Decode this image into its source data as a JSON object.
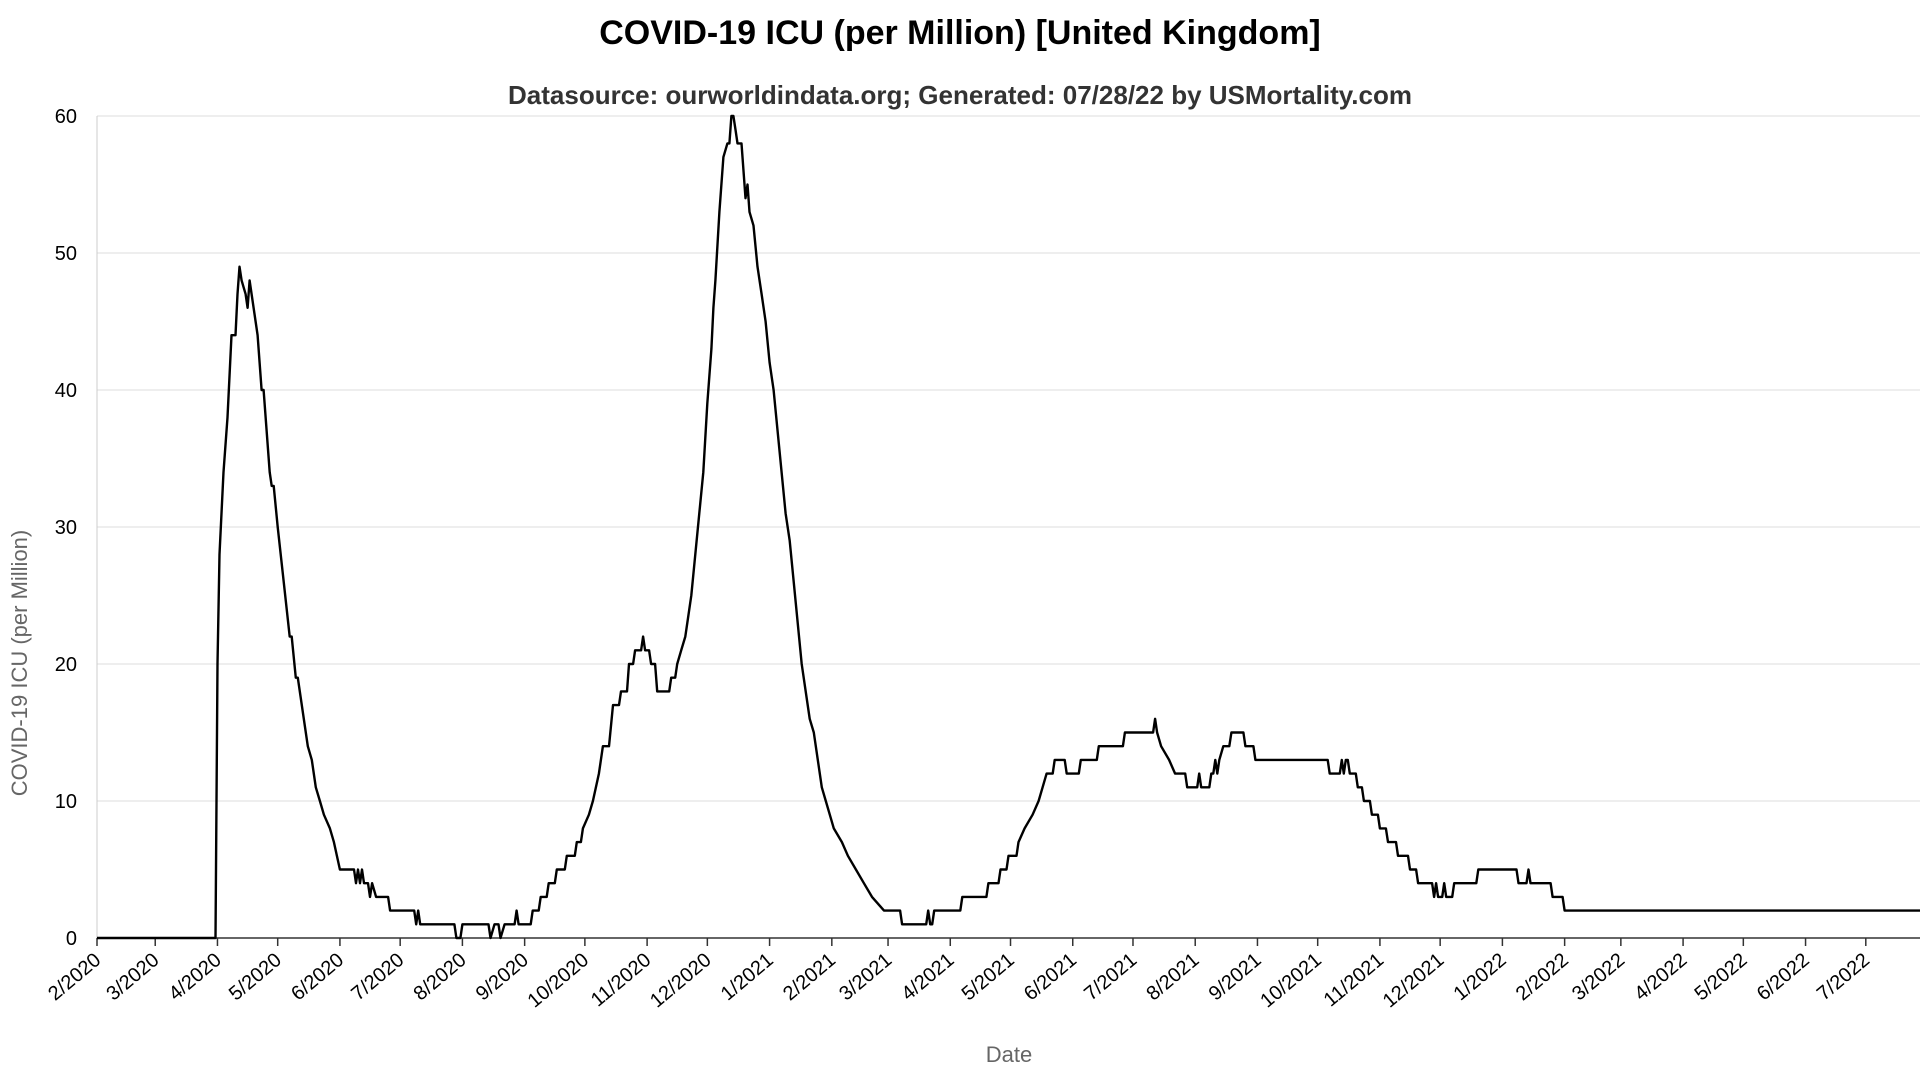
{
  "chart_data": {
    "type": "line",
    "title": "COVID-19 ICU (per Million) [United Kingdom]",
    "subtitle": "Datasource: ourworldindata.org; Generated: 07/28/22 by USMortality.com",
    "xlabel": "Date",
    "ylabel": "COVID-19 ICU (per Million)",
    "ylim": [
      0,
      60
    ],
    "yticks": [
      0,
      10,
      20,
      30,
      40,
      50,
      60
    ],
    "xlim": [
      "2020-02-01",
      "2022-07-28"
    ],
    "xticks": [
      {
        "date": "2020-02-01",
        "label": "2/2020"
      },
      {
        "date": "2020-03-01",
        "label": "3/2020"
      },
      {
        "date": "2020-04-01",
        "label": "4/2020"
      },
      {
        "date": "2020-05-01",
        "label": "5/2020"
      },
      {
        "date": "2020-06-01",
        "label": "6/2020"
      },
      {
        "date": "2020-07-01",
        "label": "7/2020"
      },
      {
        "date": "2020-08-01",
        "label": "8/2020"
      },
      {
        "date": "2020-09-01",
        "label": "9/2020"
      },
      {
        "date": "2020-10-01",
        "label": "10/2020"
      },
      {
        "date": "2020-11-01",
        "label": "11/2020"
      },
      {
        "date": "2020-12-01",
        "label": "12/2020"
      },
      {
        "date": "2021-01-01",
        "label": "1/2021"
      },
      {
        "date": "2021-02-01",
        "label": "2/2021"
      },
      {
        "date": "2021-03-01",
        "label": "3/2021"
      },
      {
        "date": "2021-04-01",
        "label": "4/2021"
      },
      {
        "date": "2021-05-01",
        "label": "5/2021"
      },
      {
        "date": "2021-06-01",
        "label": "6/2021"
      },
      {
        "date": "2021-07-01",
        "label": "7/2021"
      },
      {
        "date": "2021-08-01",
        "label": "8/2021"
      },
      {
        "date": "2021-09-01",
        "label": "9/2021"
      },
      {
        "date": "2021-10-01",
        "label": "10/2021"
      },
      {
        "date": "2021-11-01",
        "label": "11/2021"
      },
      {
        "date": "2021-12-01",
        "label": "12/2021"
      },
      {
        "date": "2022-01-01",
        "label": "1/2022"
      },
      {
        "date": "2022-02-01",
        "label": "2/2022"
      },
      {
        "date": "2022-03-01",
        "label": "3/2022"
      },
      {
        "date": "2022-04-01",
        "label": "4/2022"
      },
      {
        "date": "2022-05-01",
        "label": "5/2022"
      },
      {
        "date": "2022-06-01",
        "label": "6/2022"
      },
      {
        "date": "2022-07-01",
        "label": "7/2022"
      }
    ],
    "grid": true,
    "line_color": "#000000",
    "series": [
      {
        "points": [
          [
            "2020-02-01",
            0
          ],
          [
            "2020-03-31",
            0
          ],
          [
            "2020-04-01",
            20
          ],
          [
            "2020-04-02",
            28
          ],
          [
            "2020-04-04",
            34
          ],
          [
            "2020-04-06",
            38
          ],
          [
            "2020-04-08",
            44
          ],
          [
            "2020-04-10",
            44
          ],
          [
            "2020-04-11",
            47
          ],
          [
            "2020-04-12",
            49
          ],
          [
            "2020-04-13",
            48
          ],
          [
            "2020-04-15",
            47
          ],
          [
            "2020-04-16",
            46
          ],
          [
            "2020-04-17",
            48
          ],
          [
            "2020-04-19",
            46
          ],
          [
            "2020-04-21",
            44
          ],
          [
            "2020-04-23",
            40
          ],
          [
            "2020-04-24",
            40
          ],
          [
            "2020-04-27",
            34
          ],
          [
            "2020-04-28",
            33
          ],
          [
            "2020-04-29",
            33
          ],
          [
            "2020-05-01",
            30
          ],
          [
            "2020-05-04",
            26
          ],
          [
            "2020-05-07",
            22
          ],
          [
            "2020-05-08",
            22
          ],
          [
            "2020-05-10",
            19
          ],
          [
            "2020-05-11",
            19
          ],
          [
            "2020-05-14",
            16
          ],
          [
            "2020-05-16",
            14
          ],
          [
            "2020-05-18",
            13
          ],
          [
            "2020-05-20",
            11
          ],
          [
            "2020-05-22",
            10
          ],
          [
            "2020-05-24",
            9
          ],
          [
            "2020-05-27",
            8
          ],
          [
            "2020-05-29",
            7
          ],
          [
            "2020-06-01",
            5
          ],
          [
            "2020-06-08",
            5
          ],
          [
            "2020-06-09",
            4
          ],
          [
            "2020-06-10",
            5
          ],
          [
            "2020-06-11",
            4
          ],
          [
            "2020-06-12",
            5
          ],
          [
            "2020-06-13",
            4
          ],
          [
            "2020-06-15",
            4
          ],
          [
            "2020-06-16",
            3
          ],
          [
            "2020-06-17",
            4
          ],
          [
            "2020-06-19",
            3
          ],
          [
            "2020-06-25",
            3
          ],
          [
            "2020-06-26",
            2
          ],
          [
            "2020-07-08",
            2
          ],
          [
            "2020-07-09",
            1
          ],
          [
            "2020-07-10",
            2
          ],
          [
            "2020-07-11",
            1
          ],
          [
            "2020-07-28",
            1
          ],
          [
            "2020-07-29",
            0
          ],
          [
            "2020-07-31",
            0
          ],
          [
            "2020-08-01",
            1
          ],
          [
            "2020-08-14",
            1
          ],
          [
            "2020-08-15",
            0
          ],
          [
            "2020-08-17",
            1
          ],
          [
            "2020-08-19",
            1
          ],
          [
            "2020-08-20",
            0
          ],
          [
            "2020-08-22",
            1
          ],
          [
            "2020-08-27",
            1
          ],
          [
            "2020-08-28",
            2
          ],
          [
            "2020-08-29",
            1
          ],
          [
            "2020-09-04",
            1
          ],
          [
            "2020-09-05",
            2
          ],
          [
            "2020-09-08",
            2
          ],
          [
            "2020-09-09",
            3
          ],
          [
            "2020-09-12",
            3
          ],
          [
            "2020-09-13",
            4
          ],
          [
            "2020-09-16",
            4
          ],
          [
            "2020-09-17",
            5
          ],
          [
            "2020-09-21",
            5
          ],
          [
            "2020-09-22",
            6
          ],
          [
            "2020-09-26",
            6
          ],
          [
            "2020-09-27",
            7
          ],
          [
            "2020-09-29",
            7
          ],
          [
            "2020-09-30",
            8
          ],
          [
            "2020-10-03",
            9
          ],
          [
            "2020-10-05",
            10
          ],
          [
            "2020-10-08",
            12
          ],
          [
            "2020-10-10",
            14
          ],
          [
            "2020-10-13",
            14
          ],
          [
            "2020-10-15",
            17
          ],
          [
            "2020-10-18",
            17
          ],
          [
            "2020-10-19",
            18
          ],
          [
            "2020-10-22",
            18
          ],
          [
            "2020-10-23",
            20
          ],
          [
            "2020-10-25",
            20
          ],
          [
            "2020-10-26",
            21
          ],
          [
            "2020-10-29",
            21
          ],
          [
            "2020-10-30",
            22
          ],
          [
            "2020-10-31",
            21
          ],
          [
            "2020-11-02",
            21
          ],
          [
            "2020-11-03",
            20
          ],
          [
            "2020-11-05",
            20
          ],
          [
            "2020-11-06",
            18
          ],
          [
            "2020-11-12",
            18
          ],
          [
            "2020-11-13",
            19
          ],
          [
            "2020-11-15",
            19
          ],
          [
            "2020-11-16",
            20
          ],
          [
            "2020-11-18",
            21
          ],
          [
            "2020-11-20",
            22
          ],
          [
            "2020-11-21",
            23
          ],
          [
            "2020-11-23",
            25
          ],
          [
            "2020-11-25",
            28
          ],
          [
            "2020-11-27",
            31
          ],
          [
            "2020-11-29",
            34
          ],
          [
            "2020-12-01",
            39
          ],
          [
            "2020-12-03",
            43
          ],
          [
            "2020-12-04",
            46
          ],
          [
            "2020-12-05",
            48
          ],
          [
            "2020-12-07",
            53
          ],
          [
            "2020-12-09",
            57
          ],
          [
            "2020-12-11",
            58
          ],
          [
            "2020-12-12",
            58
          ],
          [
            "2020-12-13",
            60
          ],
          [
            "2020-12-14",
            60
          ],
          [
            "2020-12-15",
            59
          ],
          [
            "2020-12-16",
            58
          ],
          [
            "2020-12-18",
            58
          ],
          [
            "2020-12-19",
            56
          ],
          [
            "2020-12-20",
            54
          ],
          [
            "2020-12-21",
            55
          ],
          [
            "2020-12-22",
            53
          ],
          [
            "2020-12-24",
            52
          ],
          [
            "2020-12-26",
            49
          ],
          [
            "2020-12-28",
            47
          ],
          [
            "2020-12-30",
            45
          ],
          [
            "2021-01-01",
            42
          ],
          [
            "2021-01-03",
            40
          ],
          [
            "2021-01-05",
            37
          ],
          [
            "2021-01-07",
            34
          ],
          [
            "2021-01-09",
            31
          ],
          [
            "2021-01-11",
            29
          ],
          [
            "2021-01-13",
            26
          ],
          [
            "2021-01-15",
            23
          ],
          [
            "2021-01-17",
            20
          ],
          [
            "2021-01-19",
            18
          ],
          [
            "2021-01-21",
            16
          ],
          [
            "2021-01-23",
            15
          ],
          [
            "2021-01-25",
            13
          ],
          [
            "2021-01-27",
            11
          ],
          [
            "2021-01-29",
            10
          ],
          [
            "2021-01-31",
            9
          ],
          [
            "2021-02-02",
            8
          ],
          [
            "2021-02-06",
            7
          ],
          [
            "2021-02-09",
            6
          ],
          [
            "2021-02-13",
            5
          ],
          [
            "2021-02-17",
            4
          ],
          [
            "2021-02-21",
            3
          ],
          [
            "2021-02-27",
            2
          ],
          [
            "2021-03-07",
            2
          ],
          [
            "2021-03-08",
            1
          ],
          [
            "2021-03-20",
            1
          ],
          [
            "2021-03-21",
            2
          ],
          [
            "2021-03-22",
            1
          ],
          [
            "2021-03-23",
            1
          ],
          [
            "2021-03-24",
            2
          ],
          [
            "2021-04-06",
            2
          ],
          [
            "2021-04-07",
            3
          ],
          [
            "2021-04-19",
            3
          ],
          [
            "2021-04-20",
            4
          ],
          [
            "2021-04-25",
            4
          ],
          [
            "2021-04-26",
            5
          ],
          [
            "2021-04-29",
            5
          ],
          [
            "2021-04-30",
            6
          ],
          [
            "2021-05-04",
            6
          ],
          [
            "2021-05-05",
            7
          ],
          [
            "2021-05-08",
            8
          ],
          [
            "2021-05-12",
            9
          ],
          [
            "2021-05-15",
            10
          ],
          [
            "2021-05-17",
            11
          ],
          [
            "2021-05-19",
            12
          ],
          [
            "2021-05-22",
            12
          ],
          [
            "2021-05-23",
            13
          ],
          [
            "2021-05-28",
            13
          ],
          [
            "2021-05-29",
            12
          ],
          [
            "2021-06-04",
            12
          ],
          [
            "2021-06-05",
            13
          ],
          [
            "2021-06-13",
            13
          ],
          [
            "2021-06-14",
            14
          ],
          [
            "2021-06-26",
            14
          ],
          [
            "2021-06-27",
            15
          ],
          [
            "2021-07-11",
            15
          ],
          [
            "2021-07-12",
            16
          ],
          [
            "2021-07-13",
            15
          ],
          [
            "2021-07-15",
            14
          ],
          [
            "2021-07-19",
            13
          ],
          [
            "2021-07-22",
            12
          ],
          [
            "2021-07-27",
            12
          ],
          [
            "2021-07-28",
            11
          ],
          [
            "2021-08-02",
            11
          ],
          [
            "2021-08-03",
            12
          ],
          [
            "2021-08-04",
            11
          ],
          [
            "2021-08-08",
            11
          ],
          [
            "2021-08-09",
            12
          ],
          [
            "2021-08-10",
            12
          ],
          [
            "2021-08-11",
            13
          ],
          [
            "2021-08-12",
            12
          ],
          [
            "2021-08-13",
            13
          ],
          [
            "2021-08-15",
            14
          ],
          [
            "2021-08-18",
            14
          ],
          [
            "2021-08-19",
            15
          ],
          [
            "2021-08-25",
            15
          ],
          [
            "2021-08-26",
            14
          ],
          [
            "2021-08-30",
            14
          ],
          [
            "2021-08-31",
            13
          ],
          [
            "2021-10-06",
            13
          ],
          [
            "2021-10-07",
            12
          ],
          [
            "2021-10-12",
            12
          ],
          [
            "2021-10-13",
            13
          ],
          [
            "2021-10-14",
            12
          ],
          [
            "2021-10-15",
            13
          ],
          [
            "2021-10-16",
            13
          ],
          [
            "2021-10-17",
            12
          ],
          [
            "2021-10-20",
            12
          ],
          [
            "2021-10-21",
            11
          ],
          [
            "2021-10-23",
            11
          ],
          [
            "2021-10-24",
            10
          ],
          [
            "2021-10-27",
            10
          ],
          [
            "2021-10-28",
            9
          ],
          [
            "2021-10-31",
            9
          ],
          [
            "2021-11-01",
            8
          ],
          [
            "2021-11-04",
            8
          ],
          [
            "2021-11-05",
            7
          ],
          [
            "2021-11-09",
            7
          ],
          [
            "2021-11-10",
            6
          ],
          [
            "2021-11-15",
            6
          ],
          [
            "2021-11-16",
            5
          ],
          [
            "2021-11-19",
            5
          ],
          [
            "2021-11-20",
            4
          ],
          [
            "2021-11-27",
            4
          ],
          [
            "2021-11-28",
            3
          ],
          [
            "2021-11-29",
            4
          ],
          [
            "2021-11-30",
            3
          ],
          [
            "2021-12-02",
            3
          ],
          [
            "2021-12-03",
            4
          ],
          [
            "2021-12-04",
            3
          ],
          [
            "2021-12-07",
            3
          ],
          [
            "2021-12-08",
            4
          ],
          [
            "2021-12-19",
            4
          ],
          [
            "2021-12-20",
            5
          ],
          [
            "2022-01-08",
            5
          ],
          [
            "2022-01-09",
            4
          ],
          [
            "2022-01-13",
            4
          ],
          [
            "2022-01-14",
            5
          ],
          [
            "2022-01-15",
            4
          ],
          [
            "2022-01-25",
            4
          ],
          [
            "2022-01-26",
            3
          ],
          [
            "2022-01-31",
            3
          ],
          [
            "2022-02-01",
            2
          ],
          [
            "2022-07-28",
            2
          ]
        ]
      }
    ]
  }
}
